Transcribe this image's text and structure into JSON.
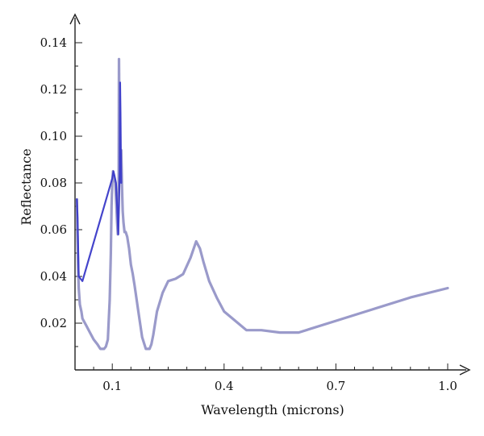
{
  "chart_data": {
    "type": "line",
    "title": "",
    "xlabel": "Wavelength (microns)",
    "ylabel": "Reflectance",
    "xlim": [
      0.0,
      1.03
    ],
    "ylim": [
      0.0,
      0.145
    ],
    "grid": false,
    "x_ticks": [
      {
        "value": 0.1,
        "label": "0.1"
      },
      {
        "value": 0.4,
        "label": "0.4"
      },
      {
        "value": 0.7,
        "label": "0.7"
      },
      {
        "value": 1.0,
        "label": "1.0"
      }
    ],
    "x_minor_ticks": [
      0.05,
      0.15,
      0.2,
      0.25,
      0.3,
      0.35,
      0.45,
      0.5,
      0.55,
      0.6,
      0.65,
      0.75,
      0.8,
      0.85,
      0.9,
      0.95
    ],
    "y_ticks": [
      {
        "value": 0.02,
        "label": "0.02"
      },
      {
        "value": 0.04,
        "label": "0.04"
      },
      {
        "value": 0.06,
        "label": "0.06"
      },
      {
        "value": 0.08,
        "label": "0.08"
      },
      {
        "value": 0.1,
        "label": "0.10"
      },
      {
        "value": 0.12,
        "label": "0.12"
      },
      {
        "value": 0.14,
        "label": "0.14"
      }
    ],
    "y_minor_ticks": [
      0.01,
      0.03,
      0.05,
      0.07,
      0.09,
      0.11,
      0.13
    ],
    "series": [
      {
        "color": "#8f8fc4",
        "stroke_color": "#8f8fc4",
        "x": [
          0.005,
          0.006,
          0.008,
          0.01,
          0.013,
          0.017,
          0.02,
          0.03,
          0.04,
          0.05,
          0.06,
          0.068,
          0.073,
          0.078,
          0.083,
          0.088,
          0.093,
          0.096,
          0.098,
          0.1,
          0.102,
          0.105,
          0.108,
          0.111,
          0.113,
          0.115,
          0.117,
          0.118,
          0.119,
          0.12,
          0.121,
          0.122,
          0.124,
          0.126,
          0.128,
          0.13,
          0.133,
          0.136,
          0.14,
          0.145,
          0.15,
          0.155,
          0.16,
          0.17,
          0.18,
          0.19,
          0.195,
          0.2,
          0.205,
          0.21,
          0.22,
          0.235,
          0.25,
          0.27,
          0.29,
          0.31,
          0.325,
          0.335,
          0.345,
          0.36,
          0.38,
          0.4,
          0.43,
          0.46,
          0.5,
          0.55,
          0.6,
          0.7,
          0.8,
          0.9,
          1.0
        ],
        "values": [
          0.073,
          0.06,
          0.045,
          0.035,
          0.028,
          0.025,
          0.022,
          0.019,
          0.016,
          0.013,
          0.011,
          0.009,
          0.009,
          0.009,
          0.01,
          0.013,
          0.03,
          0.05,
          0.07,
          0.08,
          0.085,
          0.082,
          0.08,
          0.07,
          0.063,
          0.058,
          0.08,
          0.133,
          0.11,
          0.095,
          0.085,
          0.094,
          0.094,
          0.079,
          0.068,
          0.063,
          0.059,
          0.059,
          0.057,
          0.052,
          0.045,
          0.041,
          0.036,
          0.025,
          0.014,
          0.009,
          0.009,
          0.009,
          0.011,
          0.015,
          0.025,
          0.033,
          0.038,
          0.039,
          0.041,
          0.048,
          0.055,
          0.052,
          0.046,
          0.038,
          0.031,
          0.025,
          0.021,
          0.017,
          0.017,
          0.016,
          0.016,
          0.021,
          0.026,
          0.031,
          0.035
        ]
      },
      {
        "color": "#3a3ac8",
        "stroke_color": "#3a3ac8",
        "x": [
          0.005,
          0.007,
          0.01,
          0.02,
          0.1,
          0.103,
          0.106,
          0.11,
          0.113,
          0.116,
          0.118,
          0.12,
          0.121,
          0.122,
          0.123,
          0.124
        ],
        "values": [
          0.073,
          0.065,
          0.04,
          0.038,
          0.082,
          0.085,
          0.083,
          0.08,
          0.07,
          0.058,
          0.07,
          0.085,
          0.123,
          0.11,
          0.095,
          0.08
        ]
      }
    ]
  }
}
